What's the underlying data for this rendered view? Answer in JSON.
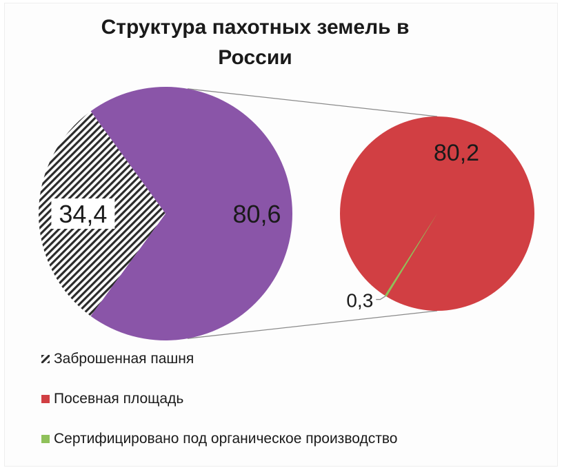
{
  "chart_data": {
    "type": "pie",
    "subtype": "pie-of-pie",
    "title": "Структура пахотных земель в России",
    "main_pie": [
      {
        "name": "Заброшенная пашня",
        "value": 34.4,
        "label": "34,4",
        "color": "#2b2b2b",
        "pattern": "diagonal-hatch"
      },
      {
        "name": "",
        "value": 80.6,
        "label": "80,6",
        "color": "#8a55a8"
      }
    ],
    "secondary_pie": [
      {
        "name": "Посевная площадь",
        "value": 80.2,
        "label": "80,2",
        "color": "#d13f43"
      },
      {
        "name": "Сертифицировано под органическое производство",
        "value": 0.3,
        "label": "0,3",
        "color": "#8fc15a"
      }
    ],
    "legend_position": "bottom-left",
    "legend": [
      {
        "name": "Заброшенная пашня",
        "color": "#2b2b2b",
        "pattern": "diagonal-hatch"
      },
      {
        "name": "Посевная площадь",
        "color": "#d13f43"
      },
      {
        "name": "Сертифицировано под органическое производство",
        "color": "#8fc15a"
      }
    ]
  }
}
